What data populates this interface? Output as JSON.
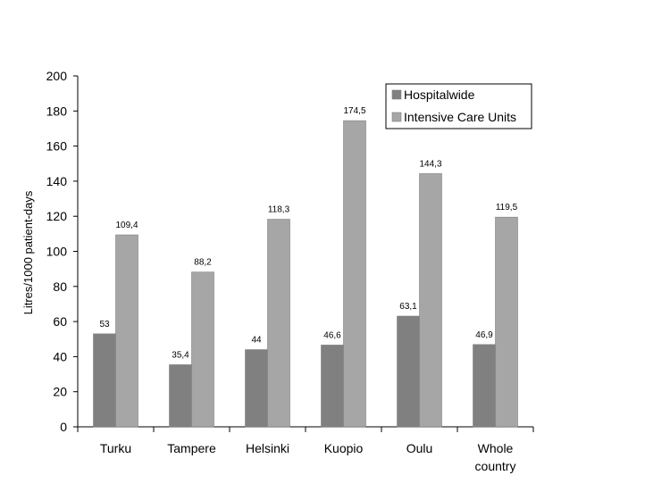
{
  "chart_data": {
    "type": "bar",
    "categories": [
      "Turku",
      "Tampere",
      "Helsinki",
      "Kuopio",
      "Oulu",
      "Whole country"
    ],
    "category_lines": [
      [
        "Turku"
      ],
      [
        "Tampere"
      ],
      [
        "Helsinki"
      ],
      [
        "Kuopio"
      ],
      [
        "Oulu"
      ],
      [
        "Whole",
        "country"
      ]
    ],
    "series": [
      {
        "name": "Hospitalwide",
        "color": "#808080",
        "values": [
          53,
          35.4,
          44,
          46.6,
          63.1,
          46.9
        ],
        "labels": [
          "53",
          "35,4",
          "44",
          "46,6",
          "63,1",
          "46,9"
        ]
      },
      {
        "name": "Intensive Care Units",
        "color": "#a6a6a6",
        "values": [
          109.4,
          88.2,
          118.3,
          174.5,
          144.3,
          119.5
        ],
        "labels": [
          "109,4",
          "88,2",
          "118,3",
          "174,5",
          "144,3",
          "119,5"
        ]
      }
    ],
    "title": "",
    "xlabel": "",
    "ylabel": "Litres/1000 patient-days",
    "ylim": [
      0,
      200
    ],
    "yticks": [
      0,
      20,
      40,
      60,
      80,
      100,
      120,
      140,
      160,
      180,
      200
    ],
    "grid": false,
    "legend_position": "top-right"
  }
}
